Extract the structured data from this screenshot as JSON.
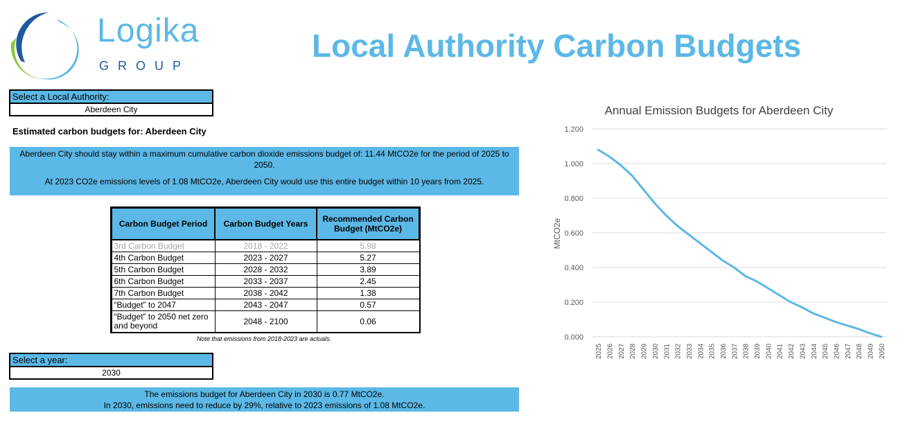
{
  "logo": {
    "word": "Logika",
    "group": "GROUP"
  },
  "page_title": "Local Authority Carbon Budgets",
  "local_authority_select": {
    "label": "Select a Local Authority:",
    "value": "Aberdeen City"
  },
  "estimate_heading": "Estimated carbon budgets for: Aberdeen City",
  "budget_info": {
    "line1": "Aberdeen City should stay within a maximum cumulative carbon dioxide emissions budget of: 11.44 MtCO2e for the period of 2025 to 2050.",
    "line2": "At 2023 CO2e emissions levels of 1.08 MtCO2e, Aberdeen City would use this entire budget within 10 years from 2025."
  },
  "table": {
    "headers": [
      "Carbon Budget Period",
      "Carbon Budget Years",
      "Recommended Carbon Budget (MtCO2e)"
    ],
    "rows": [
      {
        "period": "3rd Carbon Budget",
        "years": "2018 - 2022",
        "budget": "5.98"
      },
      {
        "period": "4th Carbon Budget",
        "years": "2023 - 2027",
        "budget": "5.27"
      },
      {
        "period": "5th Carbon Budget",
        "years": "2028 - 2032",
        "budget": "3.89"
      },
      {
        "period": "6th Carbon Budget",
        "years": "2033 - 2037",
        "budget": "2.45"
      },
      {
        "period": "7th Carbon Budget",
        "years": "2038 - 2042",
        "budget": "1.38"
      },
      {
        "period": "“Budget” to 2047",
        "years": "2043 - 2047",
        "budget": "0.57"
      },
      {
        "period": "“Budget” to 2050 net zero and beyond",
        "years": "2048 - 2100",
        "budget": "0.06"
      }
    ],
    "note": "Note that emissions from 2018-2023 are actuals."
  },
  "year_select": {
    "label": "Select a year:",
    "value": "2030"
  },
  "year_info": {
    "line1": "The emissions budget for Aberdeen City in 2030 is 0.77 MtCO2e.",
    "line2": "In 2030, emissions need to reduce by 29%, relative to 2023 emissions of 1.08 MtCO2e."
  },
  "colors": {
    "accent": "#5cb8e6",
    "logo_dark": "#1f5aa0",
    "logo_green": "#8dc63f",
    "line": "#5cb8e6"
  },
  "chart_data": {
    "type": "line",
    "title": "Annual Emission Budgets for Aberdeen City",
    "xlabel": "",
    "ylabel": "MtCO2e",
    "ylim": [
      0,
      1.2
    ],
    "yticks": [
      "0.000",
      "0.200",
      "0.400",
      "0.600",
      "0.800",
      "1.000",
      "1.200"
    ],
    "grid": true,
    "x": [
      "2025",
      "2026",
      "2027",
      "2028",
      "2029",
      "2030",
      "2031",
      "2032",
      "2033",
      "2034",
      "2035",
      "2036",
      "2037",
      "2038",
      "2039",
      "2040",
      "2041",
      "2042",
      "2043",
      "2044",
      "2045",
      "2046",
      "2047",
      "2048",
      "2049",
      "2050"
    ],
    "series": [
      {
        "values": [
          1.08,
          1.04,
          0.99,
          0.93,
          0.85,
          0.77,
          0.7,
          0.64,
          0.59,
          0.54,
          0.49,
          0.44,
          0.4,
          0.35,
          0.32,
          0.28,
          0.24,
          0.2,
          0.17,
          0.135,
          0.11,
          0.085,
          0.065,
          0.045,
          0.02,
          0.0
        ]
      }
    ]
  }
}
